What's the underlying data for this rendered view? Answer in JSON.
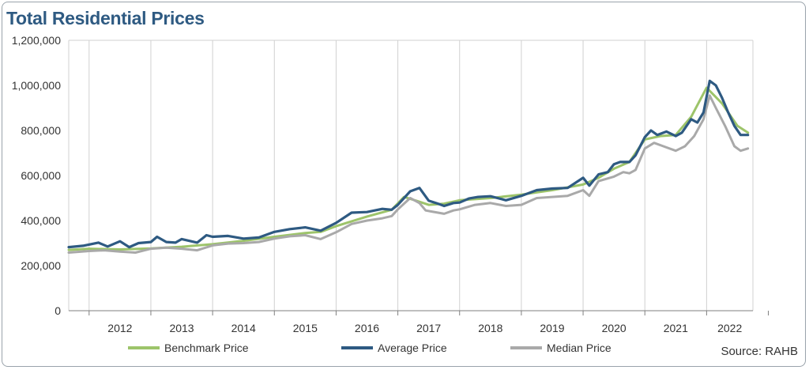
{
  "chart_data": {
    "type": "line",
    "title": "Total Residential Prices",
    "xlabel": "",
    "ylabel": "",
    "ylim": [
      0,
      1200000
    ],
    "yticks": [
      "0",
      "200,000",
      "400,000",
      "600,000",
      "800,000",
      "1,000,000",
      "1,200,000"
    ],
    "xlim": [
      2011.67,
      2022.75
    ],
    "year_labels": [
      "2012",
      "2013",
      "2014",
      "2015",
      "2016",
      "2017",
      "2018",
      "2019",
      "2020",
      "2021",
      "2022"
    ],
    "grid": "vertical",
    "legend_position": "bottom",
    "source": "Source: RAHB",
    "series": [
      {
        "name": "Benchmark Price",
        "color": "#9dc46a",
        "points": [
          [
            2011.67,
            270000
          ],
          [
            2012.0,
            275000
          ],
          [
            2012.5,
            272000
          ],
          [
            2013.0,
            276000
          ],
          [
            2013.5,
            284000
          ],
          [
            2014.0,
            295000
          ],
          [
            2014.5,
            310000
          ],
          [
            2015.0,
            328000
          ],
          [
            2015.5,
            345000
          ],
          [
            2015.75,
            350000
          ],
          [
            2016.0,
            375000
          ],
          [
            2016.5,
            418000
          ],
          [
            2016.9,
            448000
          ],
          [
            2017.1,
            505000
          ],
          [
            2017.3,
            488000
          ],
          [
            2017.5,
            470000
          ],
          [
            2017.75,
            475000
          ],
          [
            2018.0,
            490000
          ],
          [
            2018.5,
            500000
          ],
          [
            2019.0,
            515000
          ],
          [
            2019.5,
            535000
          ],
          [
            2020.0,
            560000
          ],
          [
            2020.25,
            590000
          ],
          [
            2020.5,
            630000
          ],
          [
            2020.75,
            660000
          ],
          [
            2021.0,
            760000
          ],
          [
            2021.25,
            775000
          ],
          [
            2021.5,
            780000
          ],
          [
            2021.75,
            860000
          ],
          [
            2022.0,
            990000
          ],
          [
            2022.25,
            920000
          ],
          [
            2022.5,
            820000
          ],
          [
            2022.67,
            790000
          ]
        ]
      },
      {
        "name": "Average Price",
        "color": "#2e5a82",
        "points": [
          [
            2011.67,
            282000
          ],
          [
            2011.9,
            288000
          ],
          [
            2012.15,
            302000
          ],
          [
            2012.3,
            285000
          ],
          [
            2012.5,
            308000
          ],
          [
            2012.65,
            282000
          ],
          [
            2012.8,
            300000
          ],
          [
            2013.0,
            305000
          ],
          [
            2013.1,
            328000
          ],
          [
            2013.25,
            305000
          ],
          [
            2013.4,
            302000
          ],
          [
            2013.5,
            318000
          ],
          [
            2013.75,
            302000
          ],
          [
            2013.9,
            335000
          ],
          [
            2014.0,
            328000
          ],
          [
            2014.25,
            332000
          ],
          [
            2014.5,
            320000
          ],
          [
            2014.75,
            325000
          ],
          [
            2015.0,
            350000
          ],
          [
            2015.25,
            362000
          ],
          [
            2015.5,
            370000
          ],
          [
            2015.75,
            355000
          ],
          [
            2016.0,
            390000
          ],
          [
            2016.25,
            435000
          ],
          [
            2016.5,
            438000
          ],
          [
            2016.75,
            452000
          ],
          [
            2016.9,
            448000
          ],
          [
            2017.0,
            470000
          ],
          [
            2017.2,
            530000
          ],
          [
            2017.35,
            545000
          ],
          [
            2017.5,
            488000
          ],
          [
            2017.65,
            475000
          ],
          [
            2017.75,
            465000
          ],
          [
            2017.9,
            478000
          ],
          [
            2018.0,
            480000
          ],
          [
            2018.15,
            498000
          ],
          [
            2018.3,
            505000
          ],
          [
            2018.5,
            508000
          ],
          [
            2018.75,
            490000
          ],
          [
            2019.0,
            510000
          ],
          [
            2019.25,
            535000
          ],
          [
            2019.5,
            542000
          ],
          [
            2019.75,
            545000
          ],
          [
            2020.0,
            590000
          ],
          [
            2020.1,
            555000
          ],
          [
            2020.25,
            605000
          ],
          [
            2020.4,
            615000
          ],
          [
            2020.5,
            650000
          ],
          [
            2020.6,
            660000
          ],
          [
            2020.75,
            660000
          ],
          [
            2020.85,
            690000
          ],
          [
            2021.0,
            770000
          ],
          [
            2021.1,
            800000
          ],
          [
            2021.2,
            780000
          ],
          [
            2021.35,
            795000
          ],
          [
            2021.5,
            775000
          ],
          [
            2021.6,
            790000
          ],
          [
            2021.75,
            850000
          ],
          [
            2021.85,
            835000
          ],
          [
            2021.95,
            880000
          ],
          [
            2022.05,
            1020000
          ],
          [
            2022.15,
            1000000
          ],
          [
            2022.25,
            945000
          ],
          [
            2022.35,
            880000
          ],
          [
            2022.45,
            820000
          ],
          [
            2022.55,
            780000
          ],
          [
            2022.67,
            780000
          ]
        ]
      },
      {
        "name": "Median Price",
        "color": "#a9a9a9",
        "points": [
          [
            2011.67,
            258000
          ],
          [
            2012.0,
            265000
          ],
          [
            2012.25,
            268000
          ],
          [
            2012.5,
            262000
          ],
          [
            2012.75,
            258000
          ],
          [
            2013.0,
            275000
          ],
          [
            2013.25,
            280000
          ],
          [
            2013.5,
            275000
          ],
          [
            2013.75,
            268000
          ],
          [
            2014.0,
            290000
          ],
          [
            2014.25,
            298000
          ],
          [
            2014.5,
            300000
          ],
          [
            2014.75,
            305000
          ],
          [
            2015.0,
            320000
          ],
          [
            2015.25,
            330000
          ],
          [
            2015.5,
            335000
          ],
          [
            2015.75,
            318000
          ],
          [
            2016.0,
            348000
          ],
          [
            2016.25,
            385000
          ],
          [
            2016.5,
            400000
          ],
          [
            2016.75,
            410000
          ],
          [
            2016.9,
            420000
          ],
          [
            2017.0,
            450000
          ],
          [
            2017.2,
            500000
          ],
          [
            2017.35,
            478000
          ],
          [
            2017.45,
            445000
          ],
          [
            2017.55,
            440000
          ],
          [
            2017.75,
            430000
          ],
          [
            2017.9,
            445000
          ],
          [
            2018.0,
            450000
          ],
          [
            2018.25,
            470000
          ],
          [
            2018.5,
            478000
          ],
          [
            2018.75,
            465000
          ],
          [
            2019.0,
            470000
          ],
          [
            2019.25,
            500000
          ],
          [
            2019.5,
            505000
          ],
          [
            2019.75,
            510000
          ],
          [
            2020.0,
            535000
          ],
          [
            2020.1,
            510000
          ],
          [
            2020.25,
            575000
          ],
          [
            2020.5,
            595000
          ],
          [
            2020.65,
            615000
          ],
          [
            2020.75,
            610000
          ],
          [
            2020.85,
            625000
          ],
          [
            2021.0,
            720000
          ],
          [
            2021.15,
            745000
          ],
          [
            2021.3,
            730000
          ],
          [
            2021.5,
            710000
          ],
          [
            2021.65,
            730000
          ],
          [
            2021.8,
            775000
          ],
          [
            2021.95,
            850000
          ],
          [
            2022.05,
            955000
          ],
          [
            2022.15,
            900000
          ],
          [
            2022.3,
            820000
          ],
          [
            2022.45,
            730000
          ],
          [
            2022.55,
            710000
          ],
          [
            2022.67,
            720000
          ]
        ]
      }
    ]
  }
}
